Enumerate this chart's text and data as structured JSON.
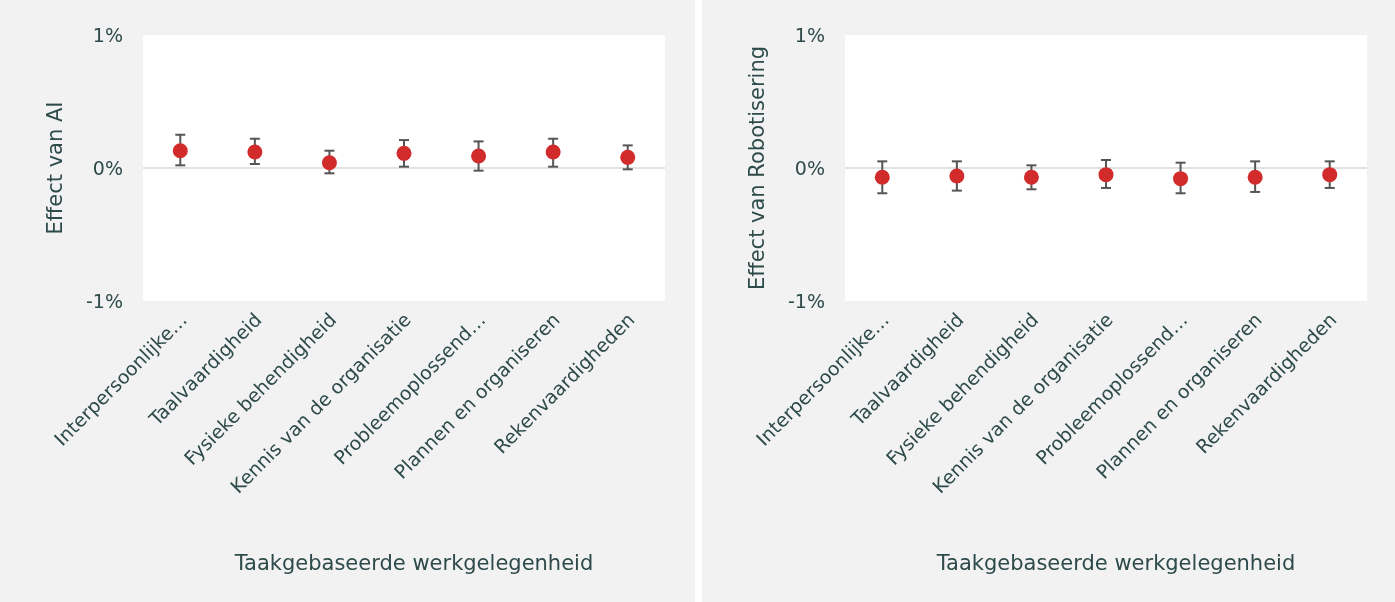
{
  "chart_data": [
    {
      "type": "scatter",
      "ylabel": "Effect van AI",
      "xlabel": "Taakgebaseerde werkgelegenheid",
      "categories": [
        "Interpersoonlijke…",
        "Taalvaardigheid",
        "Fysieke behendigheid",
        "Kennis van de organisatie",
        "Probleemoplossend…",
        "Plannen en organiseren",
        "Rekenvaardigheden"
      ],
      "series": [
        {
          "color": "#d12b2b",
          "values": [
            0.13,
            0.12,
            0.04,
            0.11,
            0.09,
            0.12,
            0.08
          ],
          "errors": [
            [
              0.02,
              0.25
            ],
            [
              0.03,
              0.22
            ],
            [
              -0.04,
              0.13
            ],
            [
              0.01,
              0.21
            ],
            [
              -0.02,
              0.2
            ],
            [
              0.01,
              0.22
            ],
            [
              -0.01,
              0.17
            ]
          ]
        }
      ],
      "ylim": [
        -1,
        1
      ],
      "yticks": [
        {
          "value": -1,
          "label": "-1%"
        },
        {
          "value": 0,
          "label": "0%"
        },
        {
          "value": 1,
          "label": "1%"
        }
      ],
      "ref_lines": [
        {
          "axis": "y",
          "value": 0,
          "color": "#d9d9d9"
        }
      ],
      "marker": "circle",
      "grid": false
    },
    {
      "type": "scatter",
      "ylabel": "Effect van Robotisering",
      "xlabel": "Taakgebaseerde werkgelegenheid",
      "categories": [
        "Interpersoonlijke…",
        "Taalvaardigheid",
        "Fysieke behendigheid",
        "Kennis van de organisatie",
        "Probleemoplossend…",
        "Plannen en organiseren",
        "Rekenvaardigheden"
      ],
      "series": [
        {
          "color": "#d12b2b",
          "values": [
            -0.07,
            -0.06,
            -0.07,
            -0.05,
            -0.08,
            -0.07,
            -0.05
          ],
          "errors": [
            [
              -0.19,
              0.05
            ],
            [
              -0.17,
              0.05
            ],
            [
              -0.16,
              0.02
            ],
            [
              -0.15,
              0.06
            ],
            [
              -0.19,
              0.04
            ],
            [
              -0.18,
              0.05
            ],
            [
              -0.15,
              0.05
            ]
          ]
        }
      ],
      "ylim": [
        -1,
        1
      ],
      "yticks": [
        {
          "value": -1,
          "label": "-1%"
        },
        {
          "value": 0,
          "label": "0%"
        },
        {
          "value": 1,
          "label": "1%"
        }
      ],
      "ref_lines": [
        {
          "axis": "y",
          "value": 0,
          "color": "#d9d9d9"
        }
      ],
      "marker": "circle",
      "grid": false
    }
  ]
}
